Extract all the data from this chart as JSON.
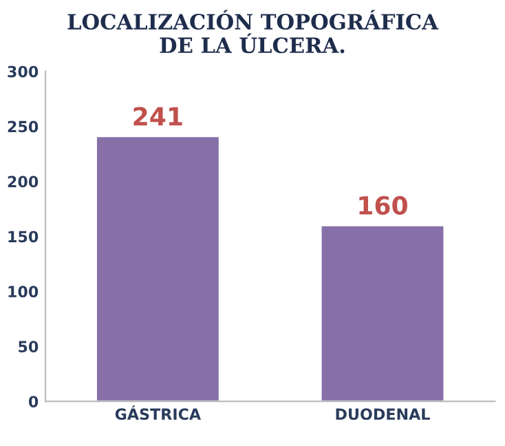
{
  "chart_data": {
    "type": "bar",
    "title": "LOCALIZACIÓN TOPOGRÁFICA\nDE LA ÚLCERA.",
    "categories": [
      "GÁSTRICA",
      "DUODENAL"
    ],
    "values": [
      241,
      160
    ],
    "color": "#8770a8",
    "ylim": [
      0,
      300
    ],
    "yticks": [
      0,
      50,
      100,
      150,
      200,
      250,
      300
    ],
    "data_labels": true,
    "grid": false
  }
}
